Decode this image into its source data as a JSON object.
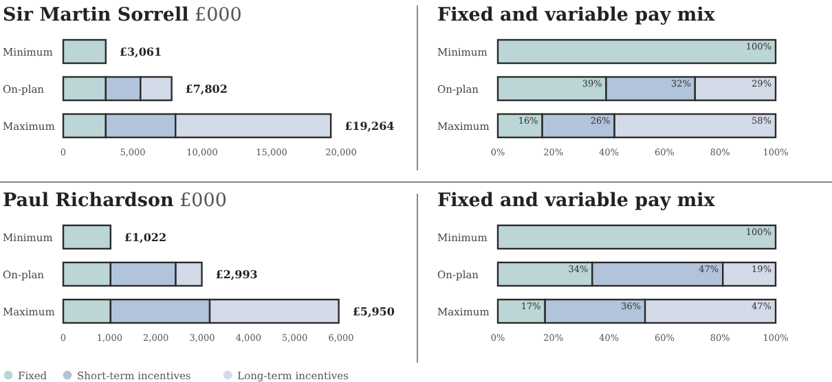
{
  "chart_data": [
    {
      "type": "bar",
      "orientation": "horizontal",
      "stacked": true,
      "title": "Sir Martin Sorrell",
      "subtitle": "£000",
      "categories": [
        "Minimum",
        "On-plan",
        "Maximum"
      ],
      "series": [
        {
          "color": "#bcd5d6",
          "values": [
            3061,
            3061,
            3061
          ]
        },
        {
          "color": "#b2c4dc",
          "values": [
            null,
            2500,
            5020
          ]
        },
        {
          "color": "#d3dae8",
          "values": [
            null,
            2241,
            11183
          ]
        }
      ],
      "xlim": [
        0,
        20000
      ],
      "xticks": [
        0,
        {
          "value": 5000,
          "label": "5,000"
        },
        {
          "value": 10000,
          "label": "10,000"
        },
        {
          "value": 15000,
          "label": "15,000"
        },
        {
          "value": 20000,
          "label": "20,000"
        }
      ],
      "totals": [
        "£3,061",
        "£7,802",
        "£19,264"
      ]
    },
    {
      "type": "bar",
      "orientation": "horizontal",
      "stacked": true,
      "title": "Fixed and variable pay mix",
      "categories": [
        "Minimum",
        "On-plan",
        "Maximum"
      ],
      "series": [
        {
          "color": "#bcd5d6",
          "values": [
            100,
            39,
            16
          ],
          "value_labels": [
            "100%",
            "39%",
            "16%"
          ]
        },
        {
          "color": "#b2c4dc",
          "values": [
            null,
            32,
            26
          ],
          "value_labels": [
            null,
            "32%",
            "26%"
          ]
        },
        {
          "color": "#d3dae8",
          "values": [
            null,
            29,
            58
          ],
          "value_labels": [
            null,
            "29%",
            "58%"
          ]
        }
      ],
      "xlim": [
        0,
        100
      ],
      "xticks": [
        {
          "value": 0,
          "label": "0%"
        },
        {
          "value": 20,
          "label": "20%"
        },
        {
          "value": 40,
          "label": "40%"
        },
        {
          "value": 60,
          "label": "60%"
        },
        {
          "value": 80,
          "label": "80%"
        },
        {
          "value": 100,
          "label": "100%"
        }
      ]
    },
    {
      "type": "bar",
      "orientation": "horizontal",
      "stacked": true,
      "title": "Paul Richardson",
      "subtitle": "£000",
      "categories": [
        "Minimum",
        "On-plan",
        "Maximum"
      ],
      "series": [
        {
          "name": "Fixed",
          "color": "#bcd5d6",
          "values": [
            1022,
            1022,
            1022
          ]
        },
        {
          "name": "Short-term incentives",
          "color": "#b2c4dc",
          "values": [
            null,
            1407,
            2142
          ]
        },
        {
          "name": "Long-term incentives",
          "color": "#d3dae8",
          "values": [
            null,
            564,
            2786
          ]
        }
      ],
      "xlim": [
        0,
        6000
      ],
      "xticks": [
        0,
        {
          "value": 1000,
          "label": "1,000"
        },
        {
          "value": 2000,
          "label": "2,000"
        },
        {
          "value": 3000,
          "label": "3,000"
        },
        {
          "value": 4000,
          "label": "4,000"
        },
        {
          "value": 5000,
          "label": "5,000"
        },
        {
          "value": 6000,
          "label": "6,000"
        }
      ],
      "totals": [
        "£1,022",
        "£2,993",
        "£5,950"
      ],
      "legend": "bottom"
    },
    {
      "type": "bar",
      "orientation": "horizontal",
      "stacked": true,
      "title": "Fixed and variable pay mix",
      "categories": [
        "Minimum",
        "On-plan",
        "Maximum"
      ],
      "series": [
        {
          "color": "#bcd5d6",
          "values": [
            100,
            34,
            17
          ],
          "value_labels": [
            "100%",
            "34%",
            "17%"
          ]
        },
        {
          "color": "#b2c4dc",
          "values": [
            null,
            47,
            36
          ],
          "value_labels": [
            null,
            "47%",
            "36%"
          ]
        },
        {
          "color": "#d3dae8",
          "values": [
            null,
            19,
            47
          ],
          "value_labels": [
            null,
            "19%",
            "47%"
          ]
        }
      ],
      "xlim": [
        0,
        100
      ],
      "xticks": [
        {
          "value": 0,
          "label": "0%"
        },
        {
          "value": 20,
          "label": "20%"
        },
        {
          "value": 40,
          "label": "40%"
        },
        {
          "value": 60,
          "label": "60%"
        },
        {
          "value": 80,
          "label": "80%"
        },
        {
          "value": 100,
          "label": "100%"
        }
      ]
    }
  ]
}
